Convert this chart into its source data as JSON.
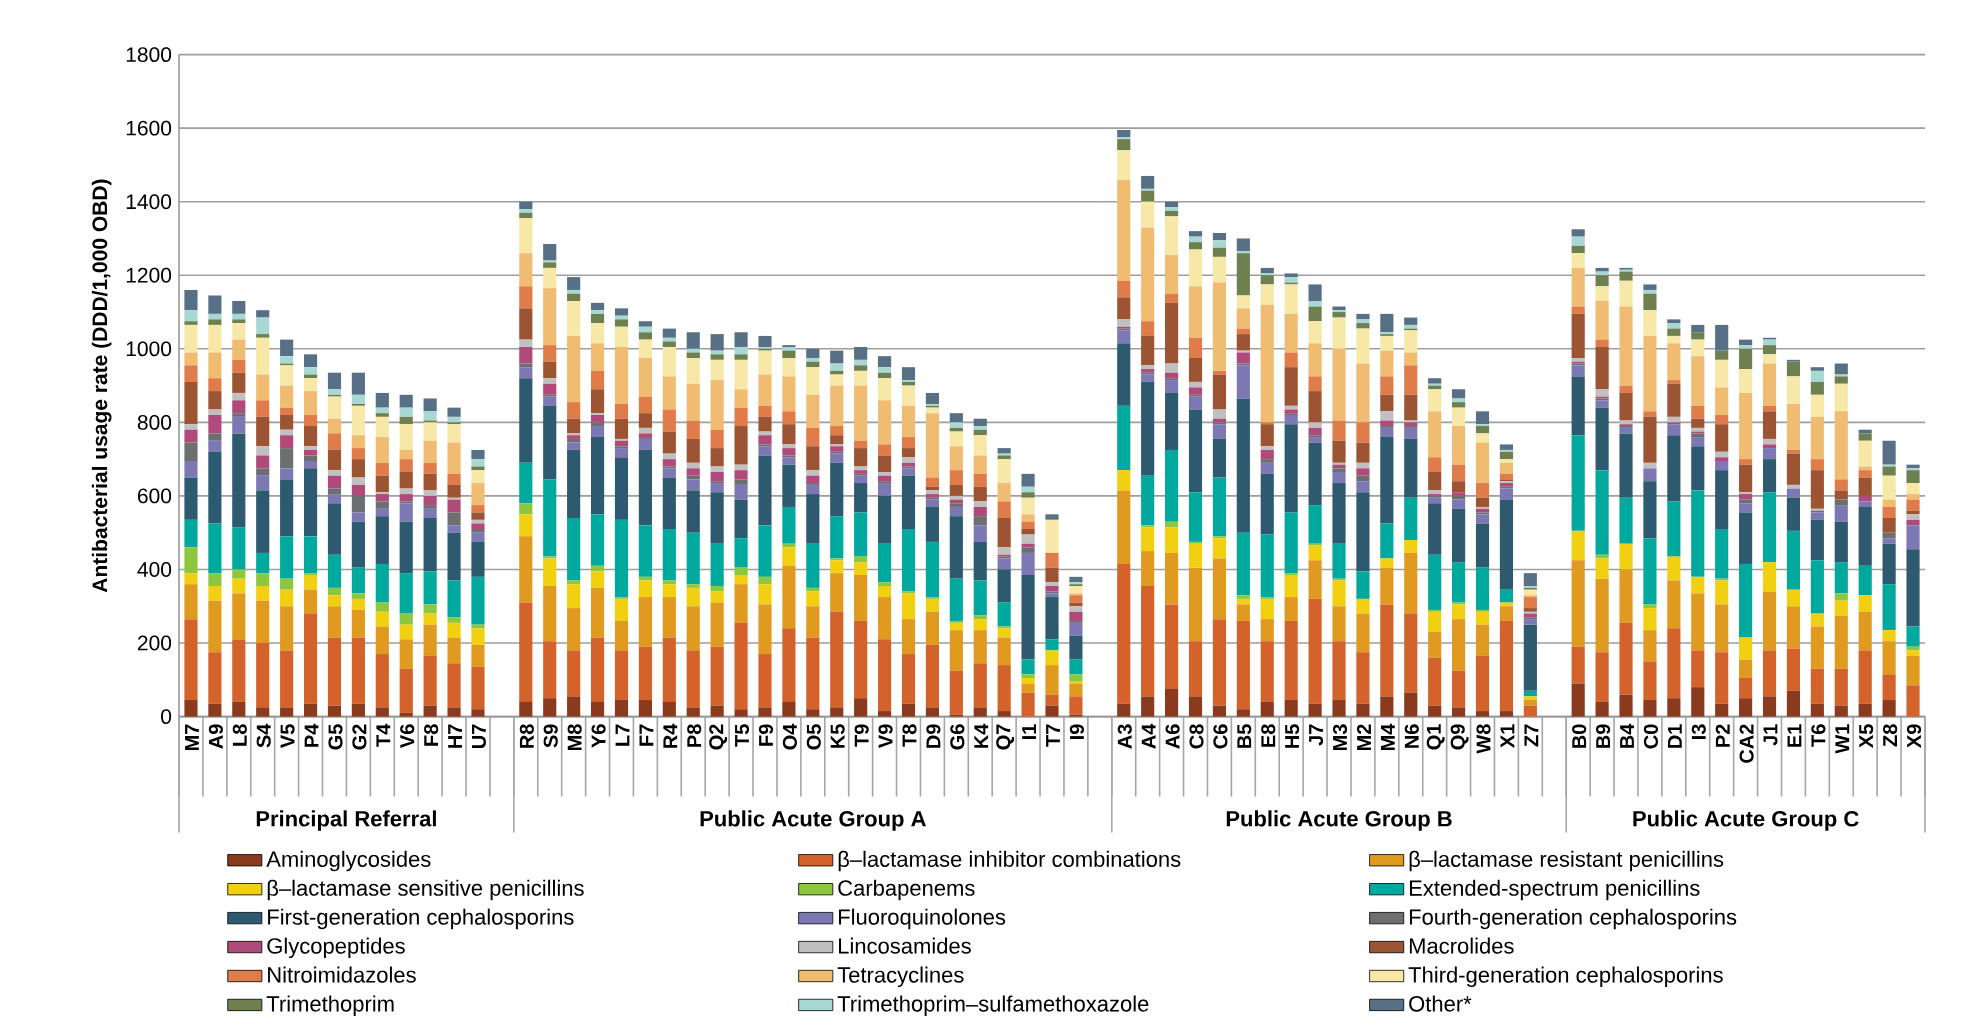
{
  "chart_data": {
    "type": "bar",
    "stacked": true,
    "ylabel": "Antibacterial usage rate (DDD/1,000 OBD)",
    "categories": [
      "M7",
      "A9",
      "L8",
      "S4",
      "V5",
      "P4",
      "G5",
      "G2",
      "T4",
      "V6",
      "F8",
      "H7",
      "U7",
      null,
      "R8",
      "S9",
      "M8",
      "Y6",
      "L7",
      "F7",
      "R4",
      "P8",
      "Q2",
      "T5",
      "F9",
      "O4",
      "O5",
      "K5",
      "T9",
      "V9",
      "T8",
      "D9",
      "G6",
      "K4",
      "Q7",
      "I1",
      "T7",
      "I9",
      null,
      "A3",
      "A4",
      "A6",
      "C8",
      "C6",
      "B5",
      "E8",
      "H5",
      "J7",
      "M3",
      "M2",
      "M4",
      "N6",
      "Q1",
      "Q9",
      "W8",
      "X1",
      "Z7",
      null,
      "B0",
      "B9",
      "B4",
      "C0",
      "D1",
      "I3",
      "P2",
      "CA2",
      "J1",
      "E1",
      "T6",
      "W1",
      "X5",
      "Z8",
      "X9"
    ],
    "annotations": [
      "Principal Referral",
      "Public Acute Group A",
      "Public Acute Group B",
      "Public Acute Group C"
    ],
    "ylim": [
      0,
      1800
    ],
    "yticks": [
      0,
      200,
      400,
      600,
      800,
      1000,
      1200,
      1400,
      1600,
      1800
    ],
    "grid": "y",
    "legend": "bottom",
    "series": [
      {
        "name": "Aminoglycosides",
        "color": "#8b3a1e",
        "values": [
          45,
          35,
          40,
          25,
          25,
          35,
          30,
          35,
          25,
          10,
          30,
          25,
          20,
          null,
          40,
          50,
          55,
          40,
          45,
          45,
          40,
          25,
          30,
          20,
          25,
          40,
          20,
          25,
          50,
          15,
          35,
          25,
          5,
          25,
          15,
          0,
          30,
          5,
          null,
          35,
          55,
          75,
          55,
          30,
          20,
          40,
          45,
          35,
          45,
          35,
          55,
          65,
          30,
          25,
          15,
          15,
          0,
          null,
          90,
          40,
          60,
          45,
          50,
          80,
          35,
          50,
          55,
          70,
          35,
          30,
          35,
          45,
          0
        ]
      },
      {
        "name": "β–lactamase inhibitor combinations",
        "color": "#d4622b",
        "values": [
          220,
          140,
          170,
          175,
          155,
          245,
          185,
          180,
          145,
          120,
          135,
          120,
          115,
          null,
          270,
          155,
          125,
          175,
          135,
          145,
          175,
          155,
          160,
          235,
          145,
          200,
          195,
          260,
          210,
          195,
          135,
          170,
          120,
          120,
          125,
          65,
          30,
          50,
          null,
          380,
          300,
          230,
          150,
          235,
          240,
          165,
          215,
          285,
          160,
          140,
          250,
          215,
          130,
          100,
          150,
          245,
          30,
          null,
          100,
          135,
          195,
          105,
          190,
          100,
          140,
          55,
          125,
          115,
          95,
          100,
          145,
          70,
          85
        ]
      },
      {
        "name": "β–lactamase resistant penicillins",
        "color": "#e09a1f",
        "values": [
          95,
          140,
          125,
          115,
          120,
          65,
          85,
          75,
          75,
          80,
          85,
          70,
          60,
          null,
          180,
          150,
          115,
          135,
          80,
          135,
          110,
          120,
          120,
          105,
          135,
          170,
          85,
          105,
          125,
          115,
          95,
          90,
          110,
          90,
          75,
          25,
          80,
          35,
          null,
          200,
          95,
          140,
          200,
          165,
          45,
          60,
          65,
          105,
          95,
          105,
          100,
          165,
          70,
          140,
          85,
          40,
          15,
          null,
          235,
          200,
          145,
          85,
          130,
          155,
          130,
          50,
          160,
          115,
          115,
          145,
          105,
          90,
          80
        ]
      },
      {
        "name": "β–lactamase sensitive penicillins",
        "color": "#f0d010",
        "values": [
          30,
          40,
          40,
          40,
          45,
          40,
          30,
          30,
          40,
          40,
          30,
          40,
          45,
          null,
          60,
          75,
          65,
          45,
          60,
          45,
          35,
          50,
          30,
          25,
          55,
          50,
          40,
          35,
          35,
          30,
          70,
          35,
          20,
          30,
          25,
          15,
          40,
          5,
          null,
          55,
          65,
          70,
          65,
          55,
          15,
          55,
          60,
          40,
          70,
          40,
          25,
          35,
          55,
          40,
          35,
          10,
          10,
          null,
          80,
          55,
          70,
          60,
          65,
          45,
          65,
          60,
          80,
          45,
          35,
          40,
          45,
          30,
          15
        ]
      },
      {
        "name": "Carbapenems",
        "color": "#8dc63f",
        "values": [
          70,
          35,
          25,
          35,
          30,
          5,
          20,
          15,
          25,
          30,
          25,
          15,
          10,
          null,
          30,
          5,
          10,
          15,
          5,
          10,
          10,
          10,
          15,
          20,
          20,
          10,
          10,
          5,
          15,
          10,
          5,
          5,
          5,
          10,
          5,
          10,
          0,
          20,
          null,
          0,
          5,
          15,
          5,
          5,
          10,
          5,
          5,
          5,
          5,
          0,
          0,
          0,
          5,
          5,
          5,
          0,
          0,
          null,
          0,
          10,
          0,
          10,
          0,
          0,
          5,
          0,
          0,
          0,
          0,
          20,
          0,
          0,
          10
        ]
      },
      {
        "name": "Extended-spectrum penicillins",
        "color": "#00a99d",
        "values": [
          75,
          135,
          115,
          55,
          115,
          100,
          90,
          70,
          105,
          110,
          90,
          100,
          130,
          null,
          110,
          210,
          170,
          140,
          210,
          140,
          140,
          140,
          115,
          80,
          140,
          100,
          120,
          115,
          120,
          105,
          170,
          150,
          115,
          95,
          65,
          40,
          30,
          40,
          null,
          175,
          135,
          195,
          135,
          160,
          170,
          170,
          165,
          105,
          95,
          75,
          95,
          115,
          150,
          110,
          115,
          35,
          15,
          null,
          260,
          230,
          125,
          180,
          150,
          235,
          135,
          200,
          190,
          160,
          145,
          85,
          80,
          125,
          55
        ]
      },
      {
        "name": "First-generation cephalosporins",
        "color": "#2d5a6e",
        "values": [
          115,
          195,
          255,
          170,
          155,
          185,
          140,
          125,
          130,
          140,
          145,
          130,
          95,
          null,
          230,
          200,
          185,
          210,
          170,
          205,
          140,
          115,
          140,
          105,
          190,
          115,
          135,
          145,
          80,
          130,
          145,
          95,
          170,
          105,
          90,
          230,
          115,
          65,
          null,
          170,
          255,
          155,
          225,
          105,
          365,
          165,
          240,
          170,
          165,
          215,
          235,
          160,
          140,
          145,
          120,
          245,
          180,
          null,
          160,
          170,
          175,
          155,
          180,
          120,
          160,
          140,
          90,
          90,
          110,
          110,
          160,
          110,
          210
        ]
      },
      {
        "name": "Fluoroquinolones",
        "color": "#7b78b3",
        "values": [
          45,
          30,
          45,
          40,
          30,
          20,
          25,
          25,
          20,
          50,
          25,
          20,
          25,
          null,
          30,
          25,
          20,
          30,
          25,
          30,
          25,
          30,
          25,
          40,
          25,
          20,
          25,
          25,
          20,
          35,
          20,
          20,
          25,
          45,
          30,
          60,
          10,
          35,
          null,
          35,
          20,
          35,
          35,
          40,
          90,
          30,
          25,
          15,
          30,
          30,
          25,
          30,
          15,
          25,
          25,
          30,
          15,
          null,
          30,
          20,
          15,
          35,
          30,
          25,
          25,
          25,
          30,
          25,
          20,
          45,
          15,
          15,
          65
        ]
      },
      {
        "name": "Fourth-generation cephalosporins",
        "color": "#6d6e70",
        "values": [
          50,
          20,
          10,
          20,
          55,
          15,
          15,
          45,
          20,
          5,
          10,
          35,
          10,
          null,
          10,
          5,
          10,
          10,
          5,
          5,
          5,
          10,
          5,
          15,
          5,
          5,
          5,
          5,
          5,
          5,
          5,
          5,
          10,
          25,
          5,
          15,
          5,
          5,
          null,
          5,
          5,
          5,
          5,
          5,
          5,
          10,
          5,
          5,
          10,
          15,
          5,
          5,
          5,
          10,
          5,
          5,
          5,
          null,
          5,
          5,
          5,
          0,
          0,
          10,
          0,
          10,
          0,
          0,
          5,
          15,
          0,
          15,
          0
        ]
      },
      {
        "name": "Glycopeptides",
        "color": "#b04a7a",
        "values": [
          35,
          50,
          35,
          35,
          35,
          15,
          35,
          30,
          20,
          20,
          25,
          35,
          15,
          null,
          45,
          30,
          10,
          20,
          15,
          10,
          20,
          20,
          25,
          25,
          25,
          20,
          20,
          15,
          10,
          15,
          10,
          10,
          10,
          25,
          5,
          10,
          15,
          25,
          null,
          5,
          10,
          15,
          20,
          10,
          30,
          25,
          10,
          20,
          10,
          20,
          15,
          10,
          5,
          10,
          10,
          10,
          10,
          null,
          5,
          5,
          5,
          0,
          5,
          5,
          10,
          15,
          10,
          0,
          0,
          0,
          15,
          0,
          15
        ]
      },
      {
        "name": "Lincosamides",
        "color": "#c0c0c0",
        "values": [
          15,
          15,
          20,
          25,
          15,
          10,
          15,
          20,
          5,
          15,
          15,
          5,
          10,
          null,
          20,
          15,
          5,
          5,
          5,
          15,
          15,
          15,
          15,
          15,
          10,
          10,
          15,
          5,
          10,
          10,
          15,
          10,
          10,
          15,
          20,
          25,
          10,
          15,
          null,
          20,
          10,
          25,
          15,
          25,
          5,
          10,
          10,
          15,
          5,
          15,
          25,
          5,
          10,
          0,
          5,
          5,
          5,
          null,
          10,
          20,
          10,
          15,
          15,
          10,
          15,
          5,
          15,
          10,
          5,
          0,
          0,
          0,
          15
        ]
      },
      {
        "name": "Macrolides",
        "color": "#9c5432",
        "values": [
          115,
          50,
          55,
          80,
          40,
          55,
          55,
          50,
          45,
          45,
          45,
          35,
          20,
          null,
          85,
          45,
          40,
          65,
          55,
          40,
          60,
          65,
          50,
          105,
          40,
          55,
          65,
          25,
          50,
          45,
          25,
          10,
          30,
          40,
          80,
          15,
          40,
          10,
          null,
          60,
          80,
          165,
          65,
          95,
          45,
          60,
          105,
          85,
          60,
          55,
          45,
          70,
          50,
          30,
          25,
          5,
          10,
          null,
          120,
          115,
          75,
          125,
          90,
          25,
          75,
          75,
          75,
          85,
          105,
          25,
          50,
          40,
          10
        ]
      },
      {
        "name": "Nitroimidazoles",
        "color": "#e07b4a",
        "values": [
          45,
          35,
          35,
          45,
          20,
          30,
          45,
          30,
          35,
          35,
          30,
          30,
          20,
          null,
          60,
          45,
          45,
          50,
          40,
          45,
          60,
          50,
          50,
          50,
          30,
          35,
          50,
          25,
          20,
          30,
          30,
          25,
          40,
          35,
          45,
          20,
          40,
          20,
          null,
          45,
          40,
          25,
          55,
          10,
          15,
          5,
          40,
          40,
          55,
          55,
          50,
          80,
          40,
          45,
          40,
          15,
          30,
          null,
          20,
          20,
          20,
          15,
          10,
          35,
          25,
          15,
          15,
          10,
          30,
          30,
          20,
          30,
          30
        ]
      },
      {
        "name": "Tetracyclines",
        "color": "#f0bc72",
        "values": [
          35,
          70,
          55,
          70,
          60,
          65,
          40,
          35,
          70,
          25,
          60,
          85,
          60,
          null,
          90,
          155,
          180,
          75,
          155,
          105,
          90,
          100,
          135,
          50,
          85,
          95,
          90,
          110,
          150,
          120,
          85,
          175,
          65,
          50,
          50,
          20,
          0,
          5,
          null,
          275,
          255,
          105,
          140,
          240,
          55,
          320,
          105,
          90,
          195,
          160,
          70,
          35,
          125,
          105,
          110,
          30,
          5,
          null,
          105,
          105,
          215,
          205,
          100,
          135,
          75,
          180,
          115,
          125,
          115,
          185,
          10,
          20,
          15
        ]
      },
      {
        "name": "Third-generation cephalosporins",
        "color": "#f7e8a8",
        "values": [
          75,
          75,
          45,
          100,
          55,
          35,
          60,
          80,
          55,
          70,
          50,
          50,
          35,
          null,
          95,
          55,
          95,
          55,
          55,
          50,
          80,
          70,
          55,
          80,
          65,
          50,
          75,
          30,
          40,
          60,
          55,
          15,
          40,
          55,
          65,
          45,
          90,
          20,
          null,
          80,
          70,
          105,
          100,
          70,
          35,
          55,
          80,
          60,
          85,
          95,
          40,
          60,
          60,
          50,
          25,
          10,
          15,
          null,
          40,
          40,
          70,
          70,
          20,
          45,
          75,
          65,
          25,
          75,
          60,
          75,
          70,
          65,
          30
        ]
      },
      {
        "name": "Trimethoprim",
        "color": "#6f8050",
        "values": [
          10,
          15,
          10,
          10,
          5,
          10,
          5,
          5,
          10,
          20,
          5,
          5,
          10,
          null,
          15,
          15,
          20,
          25,
          20,
          20,
          15,
          15,
          15,
          15,
          5,
          20,
          15,
          10,
          15,
          15,
          10,
          5,
          10,
          15,
          10,
          15,
          0,
          5,
          null,
          30,
          30,
          15,
          20,
          25,
          115,
          25,
          5,
          40,
          15,
          15,
          5,
          5,
          10,
          15,
          20,
          20,
          5,
          null,
          20,
          30,
          25,
          45,
          20,
          20,
          25,
          55,
          25,
          40,
          35,
          20,
          20,
          25,
          35
        ]
      },
      {
        "name": "Trimethoprim–sulfamethoxazole",
        "color": "#a8d8d4",
        "values": [
          30,
          15,
          15,
          45,
          20,
          20,
          15,
          25,
          15,
          25,
          25,
          15,
          20,
          null,
          10,
          5,
          10,
          10,
          10,
          15,
          10,
          10,
          10,
          20,
          5,
          10,
          10,
          20,
          15,
          15,
          5,
          5,
          15,
          10,
          5,
          15,
          0,
          5,
          null,
          5,
          5,
          10,
          15,
          20,
          5,
          5,
          15,
          15,
          5,
          10,
          5,
          10,
          5,
          10,
          5,
          5,
          5,
          null,
          25,
          10,
          5,
          10,
          15,
          0,
          0,
          10,
          15,
          0,
          30,
          5,
          0,
          5,
          5
        ]
      },
      {
        "name": "Other*",
        "color": "#587085",
        "values": [
          55,
          50,
          35,
          20,
          45,
          35,
          45,
          60,
          40,
          35,
          35,
          25,
          25,
          null,
          20,
          45,
          35,
          20,
          20,
          15,
          25,
          45,
          45,
          40,
          30,
          5,
          25,
          35,
          35,
          30,
          35,
          30,
          25,
          20,
          15,
          35,
          15,
          15,
          null,
          20,
          35,
          15,
          15,
          20,
          35,
          15,
          10,
          45,
          10,
          15,
          50,
          20,
          15,
          25,
          35,
          15,
          35,
          null,
          20,
          10,
          5,
          15,
          10,
          20,
          70,
          15,
          5,
          5,
          10,
          30,
          10,
          65,
          10
        ]
      }
    ]
  }
}
